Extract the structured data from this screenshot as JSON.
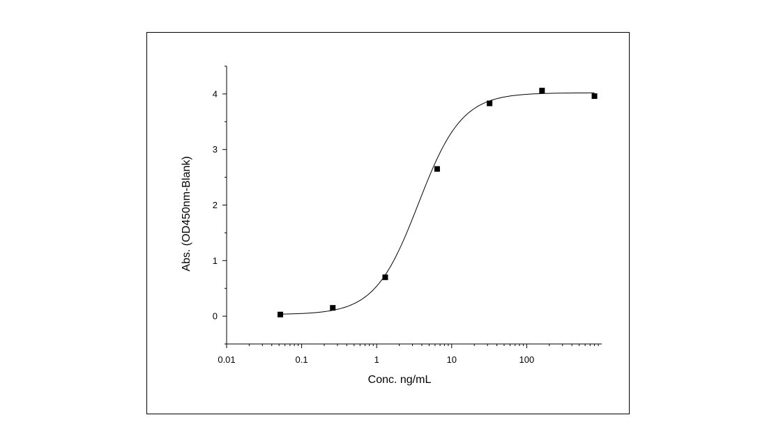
{
  "chart_data": {
    "type": "scatter",
    "title": "",
    "xlabel": "Conc. ng/mL",
    "ylabel": "Abs. (OD450nm-Blank)",
    "xscale": "log",
    "xlim": [
      0.01,
      1000
    ],
    "ylim": [
      -0.5,
      4.5
    ],
    "xticks": [
      0.01,
      0.1,
      1,
      10,
      100
    ],
    "xtick_labels": [
      "0.01",
      "0.1",
      "1",
      "10",
      "100"
    ],
    "yticks": [
      0,
      1,
      2,
      3,
      4
    ],
    "ytick_labels": [
      "0",
      "1",
      "2",
      "3",
      "4"
    ],
    "grid": false,
    "legend": "none",
    "series": [
      {
        "marker": "square",
        "x": [
          0.052,
          0.26,
          1.3,
          6.4,
          32,
          160,
          800
        ],
        "y": [
          0.03,
          0.15,
          0.7,
          2.65,
          3.83,
          4.06,
          3.96
        ]
      }
    ],
    "fit_curve": {
      "model": "4PL",
      "bottom": 0.03,
      "top": 4.02,
      "ec50": 3.6,
      "hill": 1.5
    },
    "colors": {
      "marker": "#000000",
      "curve": "#000000",
      "axis": "#000000",
      "frame": "#000000"
    }
  }
}
